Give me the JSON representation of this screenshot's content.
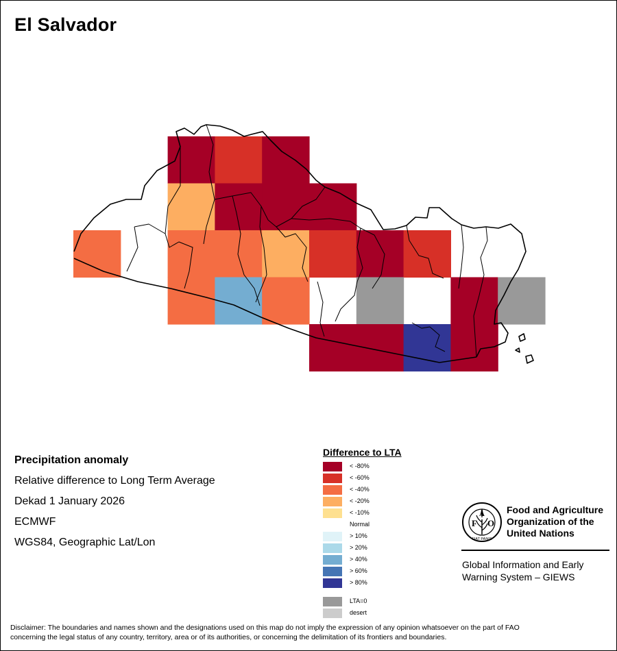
{
  "map": {
    "title": "El Salvador",
    "grid_colors_legend_index": "see legend",
    "cells": [
      {
        "row": 0,
        "col": 2,
        "cls": "<-80%"
      },
      {
        "row": 0,
        "col": 3,
        "cls": "<-60%"
      },
      {
        "row": 0,
        "col": 4,
        "cls": "<-80%"
      },
      {
        "row": 1,
        "col": 2,
        "cls": "<-20%"
      },
      {
        "row": 1,
        "col": 3,
        "cls": "<-80%"
      },
      {
        "row": 1,
        "col": 4,
        "cls": "<-80%"
      },
      {
        "row": 1,
        "col": 5,
        "cls": "<-80%"
      },
      {
        "row": 2,
        "col": 0,
        "cls": "<-40%"
      },
      {
        "row": 2,
        "col": 2,
        "cls": "<-40%"
      },
      {
        "row": 2,
        "col": 3,
        "cls": "<-40%"
      },
      {
        "row": 2,
        "col": 4,
        "cls": "<-20%"
      },
      {
        "row": 2,
        "col": 5,
        "cls": "<-60%"
      },
      {
        "row": 2,
        "col": 6,
        "cls": "<-80%"
      },
      {
        "row": 2,
        "col": 7,
        "cls": "<-60%"
      },
      {
        "row": 3,
        "col": 2,
        "cls": "<-40%"
      },
      {
        "row": 3,
        "col": 3,
        "cls": ">40%"
      },
      {
        "row": 3,
        "col": 4,
        "cls": "<-40%"
      },
      {
        "row": 3,
        "col": 6,
        "cls": "LTA=0"
      },
      {
        "row": 3,
        "col": 8,
        "cls": "<-80%"
      },
      {
        "row": 3,
        "col": 9,
        "cls": "LTA=0"
      },
      {
        "row": 4,
        "col": 5,
        "cls": "<-80%"
      },
      {
        "row": 4,
        "col": 6,
        "cls": "<-80%"
      },
      {
        "row": 4,
        "col": 7,
        "cls": ">80%"
      },
      {
        "row": 4,
        "col": 8,
        "cls": "<-80%"
      }
    ]
  },
  "info": {
    "heading": "Precipitation anomaly",
    "line1": "Relative difference to Long Term Average",
    "line2": "Dekad 1 January 2026",
    "line3": "ECMWF",
    "line4": "WGS84, Geographic Lat/Lon"
  },
  "legend": {
    "title": "Difference to LTA",
    "items": [
      {
        "key": "<-80%",
        "label": "< -80%",
        "color": "#A50026"
      },
      {
        "key": "<-60%",
        "label": "< -60%",
        "color": "#D73027"
      },
      {
        "key": "<-40%",
        "label": "< -40%",
        "color": "#F46D43"
      },
      {
        "key": "<-20%",
        "label": "< -20%",
        "color": "#FDAE61"
      },
      {
        "key": "<-10%",
        "label": "< -10%",
        "color": "#FEE090"
      },
      {
        "key": "normal",
        "label": "Normal",
        "color": "#FFFFFF"
      },
      {
        "key": ">10%",
        "label": "> 10%",
        "color": "#E0F3F8"
      },
      {
        "key": ">20%",
        "label": "> 20%",
        "color": "#ABD9E9"
      },
      {
        "key": ">40%",
        "label": "> 40%",
        "color": "#74ADD1"
      },
      {
        "key": ">60%",
        "label": "> 60%",
        "color": "#4575B4"
      },
      {
        "key": ">80%",
        "label": "> 80%",
        "color": "#313695"
      },
      {
        "key": "LTA=0",
        "label": "LTA=0",
        "color": "#999999"
      },
      {
        "key": "desert",
        "label": "desert",
        "color": "#CCCCCC"
      }
    ]
  },
  "fao": {
    "logo_letters": "FAO",
    "logo_motto": "FIAT PANIS",
    "name_line1": "Food and Agriculture",
    "name_line2": "Organization of the",
    "name_line3": "United Nations",
    "giews_line1": "Global Information and Early",
    "giews_line2": "Warning System – GIEWS"
  },
  "disclaimer": {
    "line1": "Disclaimer: The boundaries and names shown and the designations used on this map do not imply the expression of any opinion whatsoever on the part of FAO",
    "line2": "concerning the legal status of any country, territory, area or of its authorities, or concerning the delimitation of its frontiers and boundaries."
  }
}
